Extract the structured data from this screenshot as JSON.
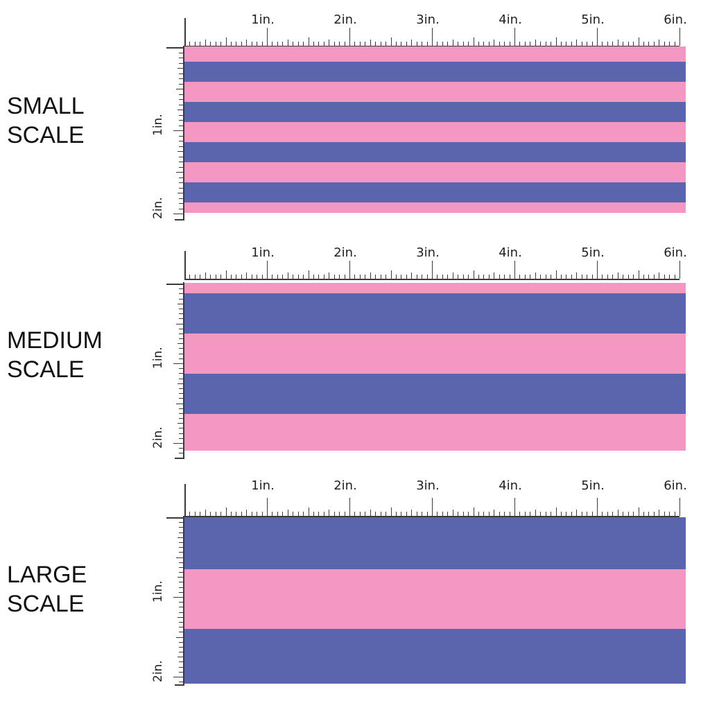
{
  "colors": {
    "pink": "#f597c3",
    "blue": "#5b65ae"
  },
  "ruler": {
    "h_labels": [
      "1in.",
      "2in.",
      "3in.",
      "4in.",
      "5in.",
      "6in."
    ],
    "v_labels": [
      "1in.",
      "2in."
    ]
  },
  "sections": [
    {
      "label": "SMALL\nSCALE",
      "stripes": [
        "pink",
        "blue",
        "pink",
        "blue",
        "pink",
        "blue",
        "pink",
        "blue",
        "pink"
      ]
    },
    {
      "label": "MEDIUM\nSCALE",
      "stripes": [
        "pink",
        "blue",
        "pink",
        "blue",
        "pink"
      ]
    },
    {
      "label": "LARGE\nSCALE",
      "stripes": [
        "blue",
        "pink",
        "blue"
      ]
    }
  ]
}
